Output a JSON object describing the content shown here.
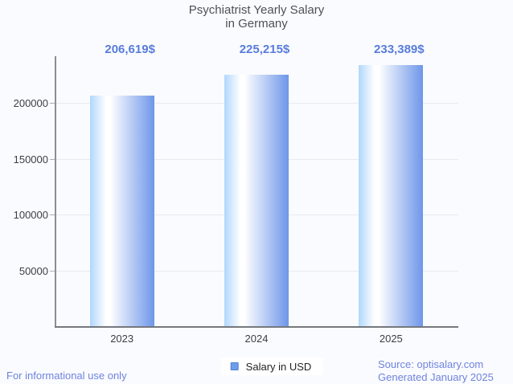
{
  "title": {
    "line1": "Psychiatrist Yearly Salary",
    "line2": "in Germany"
  },
  "chart_data": {
    "type": "bar",
    "title": "Psychiatrist Yearly Salary in Germany",
    "categories": [
      "2023",
      "2024",
      "2025"
    ],
    "series": [
      {
        "name": "Salary in USD",
        "values": [
          206619,
          225215,
          233389
        ]
      }
    ],
    "value_labels": [
      "206,619$",
      "225,215$",
      "233,389$"
    ],
    "xlabel": "",
    "ylabel": "",
    "y_ticks": [
      50000,
      100000,
      150000,
      200000
    ],
    "y_tick_labels": [
      "50000",
      "100000",
      "150000",
      "200000"
    ],
    "ylim": [
      0,
      241500
    ],
    "grid": true,
    "legend_position": "bottom-center"
  },
  "legend": {
    "label": "Salary in USD"
  },
  "footer": {
    "left": "For informational use only",
    "source": "Source: optisalary.com",
    "generated": "Generated January 2025"
  },
  "colors": {
    "background": "#fafbfe",
    "title_text": "#4d5156",
    "value_label_text": "#587cdb",
    "footer_text": "#6f83df",
    "tick_text": "#3c4043",
    "gridline": "#e8eaed",
    "axis_y": "#8a8e93",
    "axis_x": "#75787d",
    "legend_marker_fill": "#6f9ce9",
    "legend_marker_border": "#4b80d1",
    "bar_gradient_left": "#b0d7fc",
    "bar_gradient_mid": "#ffffff",
    "bar_gradient_right": "#6e96e9"
  }
}
